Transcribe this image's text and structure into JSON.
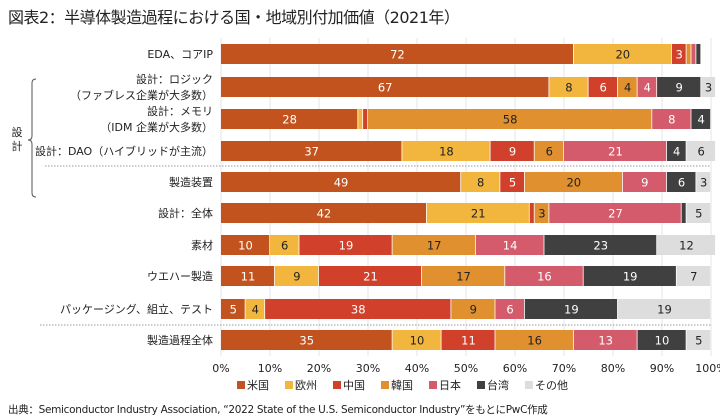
{
  "title": "図表2：半導体製造過程における国・地域別付加価値（2021年）",
  "source": "出典：Semiconductor Industry Association, “2022 State of the U.S. Semiconductor Industry”をもとにPwC作成",
  "chart_data": {
    "type": "bar",
    "orientation": "horizontal-stacked",
    "title": "図表2：半導体製造過程における国・地域別付加価値（2021年）",
    "group_label": "設計",
    "xlim": [
      0,
      100
    ],
    "xticks": [
      "0%",
      "10%",
      "20%",
      "30%",
      "40%",
      "50%",
      "60%",
      "70%",
      "80%",
      "90%",
      "100%"
    ],
    "legend_position": "bottom",
    "categories": [
      [
        "EDA、コアIP"
      ],
      [
        "設計：ロジック",
        "（ファブレス企業が大多数）"
      ],
      [
        "設計：メモリ",
        "（IDM 企業が大多数）"
      ],
      [
        "設計：DAO（ハイブリッドが主流）"
      ],
      [
        "製造装置"
      ],
      [
        "設計：全体"
      ],
      [
        "素材"
      ],
      [
        "ウエハー製造"
      ],
      [
        "パッケージング、組立、テスト"
      ],
      [
        "製造過程全体"
      ]
    ],
    "series": [
      {
        "name": "米国",
        "color": "#c2531f",
        "values": [
          72,
          67,
          28,
          37,
          49,
          42,
          10,
          11,
          5,
          35
        ]
      },
      {
        "name": "欧州",
        "color": "#f2b63f",
        "values": [
          20,
          8,
          1,
          18,
          8,
          21,
          6,
          9,
          4,
          10
        ]
      },
      {
        "name": "中国",
        "color": "#d0402b",
        "values": [
          3,
          6,
          1,
          9,
          5,
          1,
          19,
          21,
          38,
          11
        ]
      },
      {
        "name": "韓国",
        "color": "#e0902f",
        "values": [
          1,
          4,
          58,
          6,
          20,
          3,
          17,
          17,
          9,
          16
        ]
      },
      {
        "name": "日本",
        "color": "#d35b6b",
        "values": [
          1,
          4,
          8,
          21,
          9,
          27,
          14,
          16,
          6,
          13
        ]
      },
      {
        "name": "台湾",
        "color": "#404040",
        "values": [
          1,
          9,
          4,
          4,
          6,
          1,
          23,
          19,
          19,
          10
        ]
      },
      {
        "name": "その他",
        "color": "#dddddd",
        "values": [
          0,
          3,
          0,
          6,
          3,
          5,
          12,
          7,
          19,
          5
        ]
      }
    ],
    "labels": [
      [
        "72",
        "20",
        "3",
        null,
        null,
        null,
        null
      ],
      [
        "67",
        "8",
        "6",
        "4",
        "4",
        "9",
        "3"
      ],
      [
        "28",
        null,
        null,
        "58",
        "8",
        "4",
        null
      ],
      [
        "37",
        "18",
        "9",
        "6",
        "21",
        "4",
        "6"
      ],
      [
        "49",
        "8",
        "5",
        "20",
        "9",
        "6",
        "3"
      ],
      [
        "42",
        "21",
        null,
        "3",
        "27",
        null,
        "5"
      ],
      [
        "10",
        "6",
        "19",
        "17",
        "14",
        "23",
        "12"
      ],
      [
        "11",
        "9",
        "21",
        "17",
        "16",
        "19",
        "7"
      ],
      [
        "5",
        "4",
        "38",
        "9",
        "6",
        "19",
        "19"
      ],
      [
        "35",
        "10",
        "11",
        "16",
        "13",
        "10",
        "5"
      ]
    ]
  }
}
